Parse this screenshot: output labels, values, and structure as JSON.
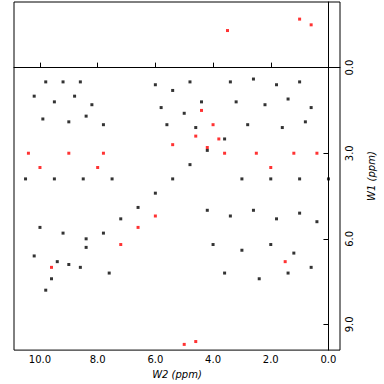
{
  "chart_data": {
    "type": "scatter",
    "xlabel": "W2 (ppm)",
    "ylabel": "W1 (ppm)",
    "xlim": [
      10.9,
      -0.4
    ],
    "ylim": [
      -2.3,
      9.9
    ],
    "xticks": [
      {
        "value": 10,
        "label": "10.0"
      },
      {
        "value": 8,
        "label": "8.0"
      },
      {
        "value": 6,
        "label": "6.0"
      },
      {
        "value": 4,
        "label": "4.0"
      },
      {
        "value": 2,
        "label": "2.0"
      },
      {
        "value": 0,
        "label": "0.0"
      }
    ],
    "yticks": [
      {
        "value": 0,
        "label": "0.0"
      },
      {
        "value": 3,
        "label": "3.0"
      },
      {
        "value": 6,
        "label": "6.0"
      },
      {
        "value": 9,
        "label": "9.0"
      }
    ],
    "grid": false,
    "series": [
      {
        "color": "#000000",
        "marker": "square",
        "values": [
          [
            9.8,
            0.5
          ],
          [
            9.2,
            0.5
          ],
          [
            8.6,
            0.5
          ],
          [
            10.2,
            1.0
          ],
          [
            9.5,
            1.2
          ],
          [
            8.8,
            1.0
          ],
          [
            8.2,
            1.3
          ],
          [
            9.9,
            1.8
          ],
          [
            9.0,
            1.9
          ],
          [
            8.4,
            1.7
          ],
          [
            7.8,
            2.0
          ],
          [
            6.0,
            0.6
          ],
          [
            5.4,
            0.8
          ],
          [
            4.8,
            0.5
          ],
          [
            5.8,
            1.4
          ],
          [
            5.0,
            1.6
          ],
          [
            4.4,
            1.2
          ],
          [
            5.6,
            2.0
          ],
          [
            4.6,
            2.1
          ],
          [
            3.4,
            0.5
          ],
          [
            2.6,
            0.4
          ],
          [
            1.8,
            0.6
          ],
          [
            1.0,
            0.5
          ],
          [
            3.2,
            1.2
          ],
          [
            2.2,
            1.3
          ],
          [
            1.4,
            1.1
          ],
          [
            0.6,
            1.4
          ],
          [
            2.8,
            2.0
          ],
          [
            1.6,
            2.1
          ],
          [
            0.8,
            1.9
          ],
          [
            9.6,
            7.4
          ],
          [
            9.0,
            6.9
          ],
          [
            8.4,
            6.3
          ],
          [
            7.8,
            5.8
          ],
          [
            7.2,
            5.3
          ],
          [
            6.6,
            4.9
          ],
          [
            6.0,
            4.4
          ],
          [
            5.4,
            3.9
          ],
          [
            4.8,
            3.4
          ],
          [
            4.2,
            2.9
          ],
          [
            3.6,
            2.5
          ],
          [
            10.5,
            3.9
          ],
          [
            9.5,
            3.9
          ],
          [
            8.5,
            3.9
          ],
          [
            7.5,
            3.9
          ],
          [
            3.0,
            3.9
          ],
          [
            2.0,
            3.9
          ],
          [
            1.0,
            3.9
          ],
          [
            0.0,
            3.9
          ],
          [
            10.0,
            5.6
          ],
          [
            9.2,
            5.8
          ],
          [
            8.4,
            6.0
          ],
          [
            10.2,
            6.6
          ],
          [
            9.4,
            6.8
          ],
          [
            8.6,
            7.0
          ],
          [
            7.6,
            7.2
          ],
          [
            9.8,
            7.8
          ],
          [
            4.2,
            5.0
          ],
          [
            3.4,
            5.2
          ],
          [
            2.6,
            5.0
          ],
          [
            1.8,
            5.3
          ],
          [
            1.0,
            5.1
          ],
          [
            0.4,
            5.4
          ],
          [
            4.0,
            6.2
          ],
          [
            3.0,
            6.4
          ],
          [
            2.0,
            6.2
          ],
          [
            1.2,
            6.5
          ],
          [
            3.6,
            7.2
          ],
          [
            2.4,
            7.4
          ],
          [
            1.4,
            7.2
          ],
          [
            0.6,
            7.0
          ]
        ]
      },
      {
        "color": "#ff0000",
        "marker": "square",
        "values": [
          [
            4.4,
            1.5
          ],
          [
            4.0,
            2.0
          ],
          [
            3.8,
            2.5
          ],
          [
            4.2,
            2.8
          ],
          [
            3.6,
            3.0
          ],
          [
            4.6,
            2.4
          ],
          [
            5.4,
            2.7
          ],
          [
            10.4,
            3.0
          ],
          [
            9.0,
            3.0
          ],
          [
            7.8,
            3.0
          ],
          [
            2.5,
            3.0
          ],
          [
            1.2,
            3.0
          ],
          [
            0.4,
            3.0
          ],
          [
            10.0,
            3.5
          ],
          [
            8.0,
            3.5
          ],
          [
            2.0,
            3.5
          ],
          [
            6.0,
            5.2
          ],
          [
            6.6,
            5.6
          ],
          [
            7.2,
            6.2
          ],
          [
            1.0,
            -1.7
          ],
          [
            0.6,
            -1.5
          ],
          [
            3.5,
            -1.3
          ],
          [
            5.0,
            9.7
          ],
          [
            4.6,
            9.6
          ],
          [
            9.6,
            7.0
          ],
          [
            1.5,
            6.8
          ]
        ]
      }
    ]
  }
}
